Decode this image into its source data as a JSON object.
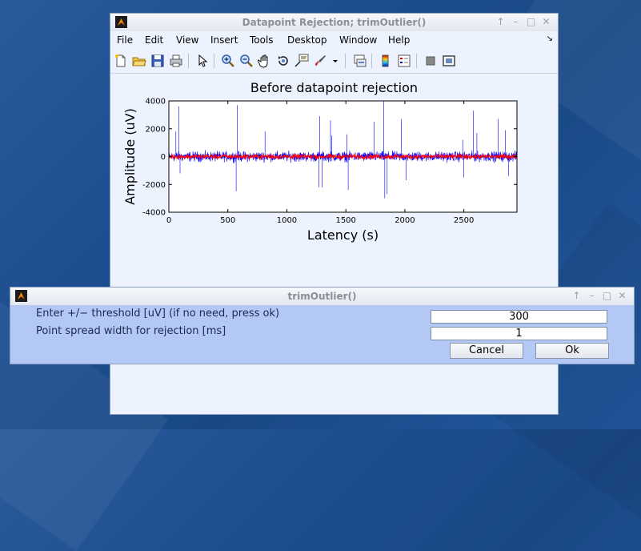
{
  "figure": {
    "title": "Datapoint Rejection; trimOutlier()",
    "window_controls": [
      "↑",
      "–",
      "□",
      "✕"
    ],
    "menu": [
      "File",
      "Edit",
      "View",
      "Insert",
      "Tools",
      "Desktop",
      "Window",
      "Help"
    ],
    "dock_glyph": "↘",
    "toolbar_icons": [
      "new-figure-icon",
      "open-file-icon",
      "save-icon",
      "print-icon",
      "pointer-icon",
      "zoom-in-icon",
      "zoom-out-icon",
      "pan-icon",
      "rotate-3d-icon",
      "data-cursor-icon",
      "brush-icon",
      "dropdown-arrow-icon",
      "link-plot-icon",
      "colorbar-icon",
      "legend-icon",
      "hide-plot-tools-icon",
      "show-plot-tools-icon"
    ]
  },
  "chart_data": {
    "type": "line",
    "title": "Before datapoint rejection",
    "xlabel": "Latency (s)",
    "ylabel": "Amplitude (uV)",
    "xlim": [
      0,
      2950
    ],
    "ylim": [
      -4000,
      4000
    ],
    "xticks": [
      0,
      500,
      1000,
      1500,
      2000,
      2500
    ],
    "yticks": [
      4000,
      2000,
      0,
      -2000,
      -4000
    ],
    "series": [
      {
        "color": "#0000ff",
        "noise_amplitude": 250
      },
      {
        "color": "#ff0000",
        "noise_amplitude": 130
      }
    ],
    "spikes": [
      {
        "x": 60,
        "y": 1800
      },
      {
        "x": 85,
        "y": 3600
      },
      {
        "x": 95,
        "y": -1200
      },
      {
        "x": 570,
        "y": -2500
      },
      {
        "x": 580,
        "y": 3700
      },
      {
        "x": 815,
        "y": 1800
      },
      {
        "x": 1270,
        "y": -2200
      },
      {
        "x": 1280,
        "y": 2900
      },
      {
        "x": 1300,
        "y": -2200
      },
      {
        "x": 1370,
        "y": 2600
      },
      {
        "x": 1380,
        "y": 1500
      },
      {
        "x": 1510,
        "y": 1600
      },
      {
        "x": 1520,
        "y": -2400
      },
      {
        "x": 1740,
        "y": 2500
      },
      {
        "x": 1820,
        "y": 4000
      },
      {
        "x": 1830,
        "y": -3000
      },
      {
        "x": 1850,
        "y": -2700
      },
      {
        "x": 1970,
        "y": 2700
      },
      {
        "x": 2010,
        "y": -1700
      },
      {
        "x": 2490,
        "y": 1200
      },
      {
        "x": 2500,
        "y": -1500
      },
      {
        "x": 2580,
        "y": 3300
      },
      {
        "x": 2610,
        "y": 1700
      },
      {
        "x": 2790,
        "y": 2700
      },
      {
        "x": 2850,
        "y": 1900
      },
      {
        "x": 2880,
        "y": -1400
      }
    ]
  },
  "dialog": {
    "title": "trimOutlier()",
    "window_controls": [
      "↑",
      "–",
      "□",
      "✕"
    ],
    "prompt1": "Enter +/− threshold [uV] (if no need, press ok)",
    "prompt2": "Point spread width for rejection [ms]",
    "value1": "300",
    "value2": "1",
    "cancel": "Cancel",
    "ok": "Ok"
  }
}
